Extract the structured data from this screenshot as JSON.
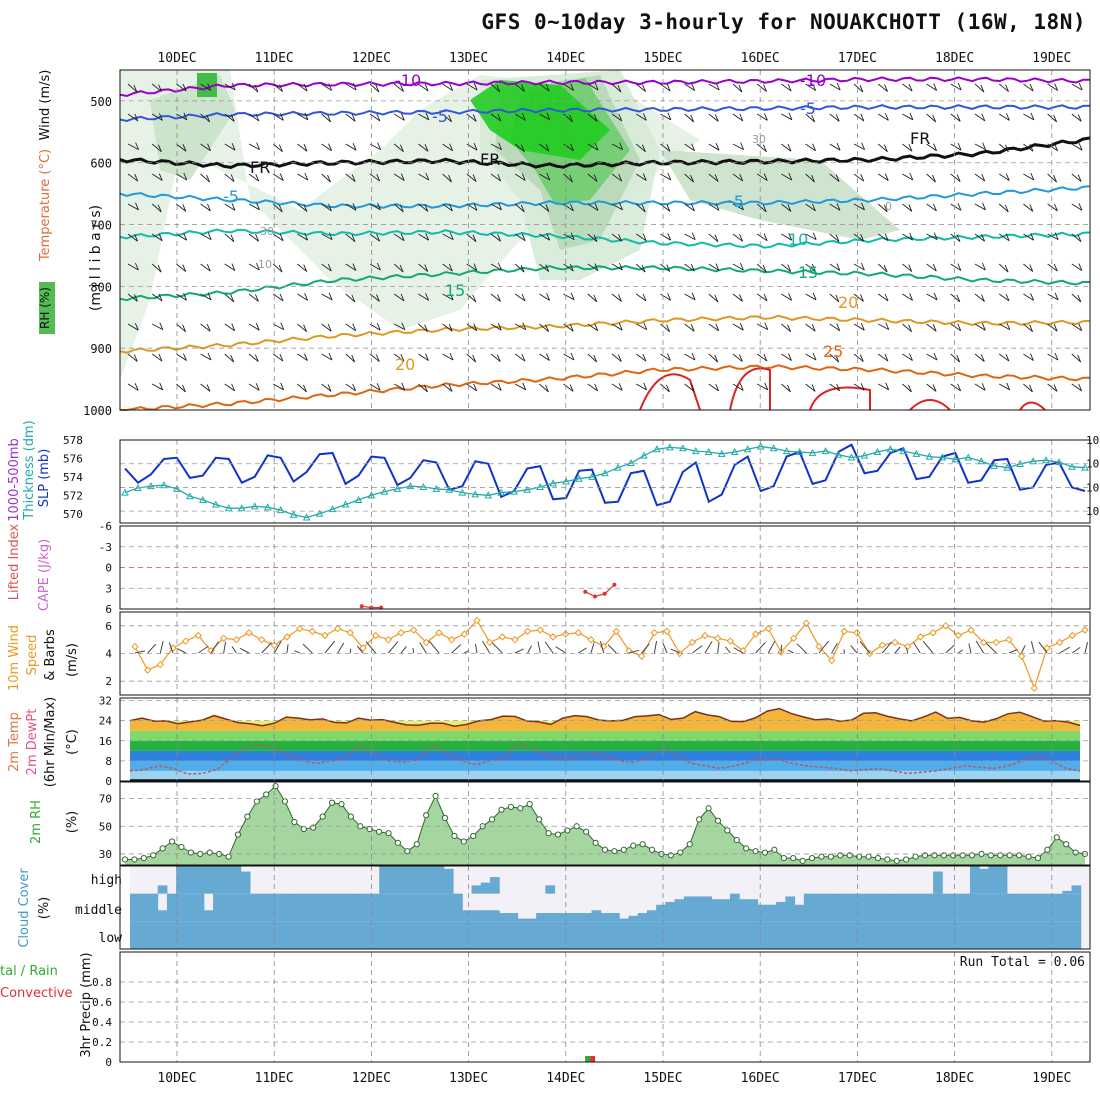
{
  "title": "GFS 0~10day 3-hourly for NOUAKCHOTT (16W, 18N)",
  "dates": [
    "10DEC",
    "11DEC",
    "12DEC",
    "13DEC",
    "14DEC",
    "15DEC",
    "16DEC",
    "17DEC",
    "18DEC",
    "19DEC"
  ],
  "run_total": "Run Total = 0.06",
  "labels": {
    "p1_rh": "RH (%)",
    "p1_temp": "Temperature (°C)",
    "p1_wind": "Wind (m/s)",
    "p1_mb": "(m i l l i b a r s)",
    "p2_thick": "1000-500mb",
    "p2_thick2": "Thickness (dm)",
    "p2_slp": "SLP (mb)",
    "p3_li": "Lifted Index",
    "p3_cape": "CAPE (J/kg)",
    "p4_a": "10m Wind",
    "p4_b": "Speed",
    "p4_c": "& Barbs",
    "p4_unit": "(m/s)",
    "p5_a": "2m Temp",
    "p5_b": "2m DewPt",
    "p5_c": "(6hr Min/Max)",
    "p5_unit": "(°C)",
    "p6_a": "2m RH",
    "p6_unit": "(%)",
    "p7_a": "Cloud Cover",
    "p7_unit": "(%)",
    "p7_high": "high",
    "p7_mid": "middle",
    "p7_low": "low",
    "p8_a": "tal / Rain",
    "p8_b": "Convective",
    "p8_c": "3hr Precip (mm)",
    "contour_labels": [
      "-10",
      "-10",
      "-5",
      "-5",
      "FR",
      "FR",
      "FR",
      "-5",
      "-5",
      "10",
      "15",
      "15",
      "20",
      "20",
      "25",
      "30",
      "10",
      "0",
      "30"
    ]
  },
  "colors": {
    "m10": "#9900cc",
    "m5": "#3355dd",
    "fr": "#111111",
    "p5": "#2299dd",
    "p10": "#11bbaa",
    "p15": "#11aa77",
    "p20": "#dd9922",
    "p25": "#dd6611",
    "p30": "#dd2222",
    "slp": "#1133cc",
    "thick": "#22aaaa",
    "wind": "#ee9922",
    "rh": "#33aa33",
    "cloud": "#66aad4",
    "precip_rain": "#33aa33",
    "precip_conv": "#dd3333"
  },
  "chart_data": [
    {
      "type": "line",
      "name": "pressure-level cross-section",
      "x": [
        "10DEC",
        "11DEC",
        "12DEC",
        "13DEC",
        "14DEC",
        "15DEC",
        "16DEC",
        "17DEC",
        "18DEC",
        "19DEC"
      ],
      "ylim": [
        1000,
        450
      ],
      "yticks": [
        500,
        600,
        700,
        800,
        900,
        1000
      ],
      "series": [
        {
          "name": "-10",
          "values": [
            490,
            475,
            473,
            472,
            470,
            470,
            468,
            465,
            465,
            468
          ]
        },
        {
          "name": "-5",
          "values": [
            530,
            522,
            520,
            518,
            515,
            514,
            512,
            510,
            510,
            510
          ]
        },
        {
          "name": "FR",
          "values": [
            595,
            605,
            600,
            597,
            605,
            600,
            598,
            595,
            585,
            562
          ]
        },
        {
          "name": "5",
          "values": [
            650,
            660,
            670,
            670,
            665,
            665,
            665,
            660,
            650,
            640
          ]
        },
        {
          "name": "10",
          "values": [
            720,
            710,
            715,
            712,
            718,
            730,
            735,
            725,
            720,
            715
          ]
        },
        {
          "name": "15",
          "values": [
            820,
            810,
            790,
            780,
            770,
            770,
            775,
            780,
            790,
            795
          ]
        },
        {
          "name": "20",
          "values": [
            905,
            895,
            880,
            870,
            865,
            855,
            850,
            855,
            860,
            858
          ]
        },
        {
          "name": "25",
          "values": [
            1000,
            990,
            975,
            960,
            950,
            935,
            930,
            935,
            945,
            950
          ]
        }
      ]
    },
    {
      "type": "line",
      "name": "SLP and thickness",
      "series": [
        {
          "name": "SLP (mb)",
          "ylim": [
            1009,
            1016
          ],
          "values": [
            1013.6,
            1012.4,
            1013.1,
            1014.4,
            1014.5,
            1012.8,
            1013.0,
            1014.5,
            1014.4,
            1012.4,
            1012.9,
            1014.7,
            1014.5,
            1012.5,
            1013.3,
            1014.8,
            1014.9,
            1012.3,
            1013.0,
            1014.6,
            1014.5,
            1012.2,
            1012.8,
            1014.3,
            1014.1,
            1011.8,
            1012.1,
            1014.2,
            1014.0,
            1011.2,
            1011.7,
            1013.6,
            1013.8,
            1011.0,
            1011.1,
            1013.4,
            1013.5,
            1010.7,
            1010.8,
            1013.2,
            1013.4,
            1010.5,
            1010.8,
            1013.3,
            1014.1,
            1010.8,
            1011.4,
            1013.9,
            1014.6,
            1011.7,
            1012.1,
            1014.6,
            1015.0,
            1012.3,
            1012.6,
            1015.0,
            1015.6,
            1013.2,
            1013.4,
            1014.9,
            1015.3,
            1012.7,
            1012.9,
            1014.6,
            1014.9,
            1012.4,
            1012.6,
            1014.3,
            1014.4,
            1011.8,
            1012.0,
            1013.9,
            1014.1,
            1012.0,
            1011.7
          ]
        },
        {
          "name": "1000-500mb Thickness (dm)",
          "ylim": [
            569,
            578
          ],
          "values": [
            572.3,
            572.8,
            573.0,
            573.1,
            572.7,
            571.9,
            571.5,
            571.0,
            570.6,
            570.6,
            570.8,
            570.7,
            570.4,
            569.9,
            569.6,
            570.0,
            570.5,
            571.0,
            571.5,
            572.0,
            572.4,
            572.7,
            573.0,
            572.9,
            572.7,
            572.6,
            572.3,
            572.1,
            572.0,
            572.3,
            572.4,
            572.6,
            572.9,
            573.3,
            573.5,
            573.8,
            574.0,
            574.4,
            575.0,
            575.5,
            576.3,
            577.0,
            577.2,
            577.1,
            576.8,
            576.7,
            576.5,
            576.7,
            577.0,
            577.3,
            577.1,
            576.8,
            576.7,
            576.6,
            576.8,
            576.4,
            576.1,
            576.3,
            576.7,
            577.0,
            576.8,
            576.5,
            576.2,
            576.1,
            575.9,
            576.1,
            575.7,
            575.2,
            575.0,
            575.4,
            575.7,
            575.8,
            575.6,
            575.1,
            575.0
          ]
        }
      ]
    },
    {
      "type": "line",
      "name": "Lifted Index / CAPE",
      "ylim": [
        6,
        -6
      ],
      "series": [
        {
          "name": "Lifted Index",
          "values": [
            [
              11.9,
              5.6
            ],
            [
              12.0,
              5.8
            ],
            [
              12.1,
              5.8
            ],
            [
              14.2,
              3.5
            ],
            [
              14.3,
              4.2
            ],
            [
              14.4,
              3.8
            ],
            [
              14.5,
              2.5
            ]
          ]
        }
      ]
    },
    {
      "type": "line",
      "name": "10m Wind Speed",
      "ylim": [
        1,
        7
      ],
      "values": [
        4.5,
        2.8,
        3.2,
        4.4,
        4.9,
        5.3,
        4.2,
        5.1,
        5.0,
        5.5,
        5.0,
        4.6,
        5.2,
        5.8,
        5.6,
        5.3,
        5.8,
        5.5,
        4.4,
        5.3,
        5.0,
        5.5,
        5.7,
        4.8,
        5.5,
        5.0,
        5.4,
        6.4,
        4.8,
        5.2,
        5.0,
        5.6,
        5.7,
        5.2,
        5.4,
        5.5,
        5.0,
        4.5,
        5.6,
        4.2,
        3.8,
        5.5,
        5.6,
        4.0,
        4.8,
        5.3,
        5.1,
        4.9,
        4.2,
        5.4,
        5.8,
        4.1,
        5.1,
        6.2,
        4.5,
        3.5,
        5.6,
        5.5,
        4.0,
        4.6,
        4.8,
        4.5,
        5.2,
        5.5,
        6.0,
        5.3,
        5.7,
        4.8,
        4.8,
        5.0,
        3.8,
        1.5,
        4.4,
        4.8,
        5.3,
        5.7
      ]
    },
    {
      "type": "area",
      "name": "2m Temp and DewPt",
      "ylim": [
        0,
        33
      ],
      "series": [
        {
          "name": "2m Temp",
          "values": [
            24.0,
            25.0,
            23.8,
            23.9,
            22.8,
            23.5,
            24.2,
            26.0,
            24.6,
            23.2,
            22.8,
            22.0,
            23.0,
            25.4,
            25.0,
            24.3,
            24.7,
            23.3,
            23.1,
            25.0,
            24.2,
            24.4,
            23.3,
            22.3,
            22.2,
            23.0,
            23.0,
            21.8,
            22.5,
            23.9,
            24.4,
            25.8,
            25.7,
            23.9,
            23.5,
            22.5,
            25.0,
            26.0,
            25.6,
            24.2,
            23.9,
            24.1,
            25.6,
            25.9,
            26.4,
            24.5,
            25.0,
            27.6,
            26.3,
            25.6,
            23.7,
            23.6,
            25.1,
            27.8,
            28.8,
            26.8,
            25.5,
            24.3,
            24.7,
            23.8,
            24.2,
            26.9,
            27.1,
            25.7,
            24.7,
            23.9,
            25.5,
            27.4,
            24.9,
            25.3,
            23.9,
            23.4,
            24.7,
            26.7,
            27.3,
            25.6,
            23.8,
            24.0,
            23.4,
            22.1
          ]
        },
        {
          "name": "2m DewPt",
          "values": [
            4.0,
            4.5,
            6.0,
            5.0,
            2.8,
            3.0,
            4.5,
            9.0,
            13.0,
            14.5,
            13.0,
            10.0,
            8.0,
            7.0,
            8.0,
            9.0,
            14.0,
            11.0,
            8.0,
            7.5,
            8.5,
            14.0,
            11.5,
            8.0,
            6.5,
            8.0,
            9.0,
            15.0,
            13.0,
            10.0,
            9.0,
            9.5,
            11.0,
            10.0,
            8.0,
            7.5,
            9.0,
            13.5,
            10.0,
            7.0,
            6.0,
            5.0,
            6.0,
            7.5,
            9.0,
            8.5,
            7.0,
            6.0,
            5.5,
            5.0,
            4.0,
            4.5,
            5.0,
            4.0,
            3.0,
            3.5,
            4.0,
            5.0,
            6.0,
            5.5,
            5.0,
            6.0,
            8.0,
            10.0,
            8.0,
            5.0,
            4.0
          ]
        }
      ]
    },
    {
      "type": "area",
      "name": "2m RH",
      "ylim": [
        22,
        82
      ],
      "yticks": [
        30,
        50,
        70
      ],
      "values": [
        26,
        26,
        27,
        29,
        34,
        39,
        35,
        31,
        30,
        31,
        30,
        28,
        44,
        57,
        68,
        73,
        79,
        68,
        53,
        48,
        49,
        57,
        67,
        66,
        57,
        50,
        48,
        46,
        45,
        38,
        32,
        37,
        58,
        72,
        56,
        43,
        39,
        43,
        50,
        55,
        62,
        64,
        63,
        66,
        55,
        45,
        44,
        47,
        50,
        46,
        38,
        33,
        32,
        33,
        36,
        37,
        33,
        30,
        29,
        31,
        37,
        55,
        63,
        54,
        47,
        40,
        34,
        32,
        31,
        33,
        27,
        27,
        25,
        27,
        28,
        28,
        29,
        29,
        28,
        28,
        27,
        26,
        25,
        26,
        28,
        29,
        29,
        29,
        29,
        29,
        29,
        30,
        29,
        29,
        29,
        29,
        28,
        27,
        33,
        42,
        37,
        31,
        30
      ]
    },
    {
      "type": "bar",
      "name": "Cloud Cover",
      "high": [
        0,
        0,
        0,
        30,
        0,
        100,
        100,
        100,
        100,
        100,
        100,
        100,
        80,
        0,
        0,
        0,
        0,
        0,
        0,
        0,
        0,
        0,
        0,
        0,
        0,
        0,
        0,
        100,
        100,
        100,
        100,
        100,
        100,
        100,
        90,
        0,
        0,
        30,
        40,
        60,
        0,
        0,
        0,
        0,
        0,
        30,
        0,
        0,
        0,
        0,
        0,
        0,
        0,
        0,
        0,
        0,
        0,
        0,
        0,
        0,
        0,
        0,
        0,
        0,
        0,
        0,
        0,
        0,
        0,
        0,
        0,
        0,
        0,
        0,
        0,
        0,
        0,
        0,
        0,
        0,
        0,
        0,
        0,
        0,
        0,
        0,
        0,
        80,
        0,
        0,
        0,
        100,
        90,
        100,
        100,
        0,
        0,
        0,
        0,
        0,
        0,
        10,
        30,
        0
      ],
      "middle": [
        100,
        100,
        100,
        40,
        100,
        100,
        100,
        100,
        40,
        100,
        100,
        100,
        100,
        100,
        100,
        100,
        100,
        100,
        100,
        100,
        100,
        100,
        100,
        100,
        100,
        100,
        100,
        100,
        100,
        100,
        100,
        100,
        100,
        100,
        100,
        100,
        40,
        40,
        40,
        40,
        30,
        30,
        10,
        10,
        30,
        30,
        30,
        30,
        30,
        30,
        40,
        30,
        30,
        10,
        20,
        30,
        40,
        60,
        70,
        80,
        90,
        90,
        90,
        80,
        80,
        100,
        80,
        80,
        60,
        60,
        70,
        90,
        60,
        100,
        100,
        100,
        100,
        100,
        100,
        100,
        100,
        100,
        100,
        100,
        100,
        100,
        100,
        100,
        100,
        100,
        100,
        100,
        100,
        100,
        100,
        100,
        100,
        100,
        100,
        100,
        100,
        100,
        100
      ],
      "low": [
        100,
        100,
        100,
        100,
        100,
        100,
        100,
        100,
        100,
        100,
        100,
        100,
        100,
        100,
        100,
        100,
        100,
        100,
        100,
        100,
        100,
        100,
        100,
        100,
        100,
        100,
        100,
        100,
        100,
        100,
        100,
        100,
        100,
        100,
        100,
        100,
        100,
        100,
        100,
        100,
        100,
        100,
        100,
        100,
        100,
        100,
        100,
        100,
        100,
        100,
        100,
        100,
        100,
        100,
        100,
        100,
        100,
        100,
        100,
        100,
        100,
        100,
        100,
        100,
        100,
        100,
        100,
        100,
        100,
        100,
        100,
        100,
        100,
        100,
        100,
        100,
        100,
        100,
        100,
        100,
        100,
        100,
        100,
        100,
        100,
        100,
        100,
        100,
        100,
        100,
        100,
        100,
        100,
        100,
        100,
        100,
        100,
        100,
        100,
        100,
        100,
        100,
        100
      ]
    },
    {
      "type": "bar",
      "name": "3hr Precip (mm)",
      "ylim": [
        0,
        1.0
      ],
      "yticks": [
        0,
        0.2,
        0.4,
        0.6,
        0.8
      ],
      "values": [
        [
          14.25,
          0.06
        ]
      ]
    }
  ]
}
